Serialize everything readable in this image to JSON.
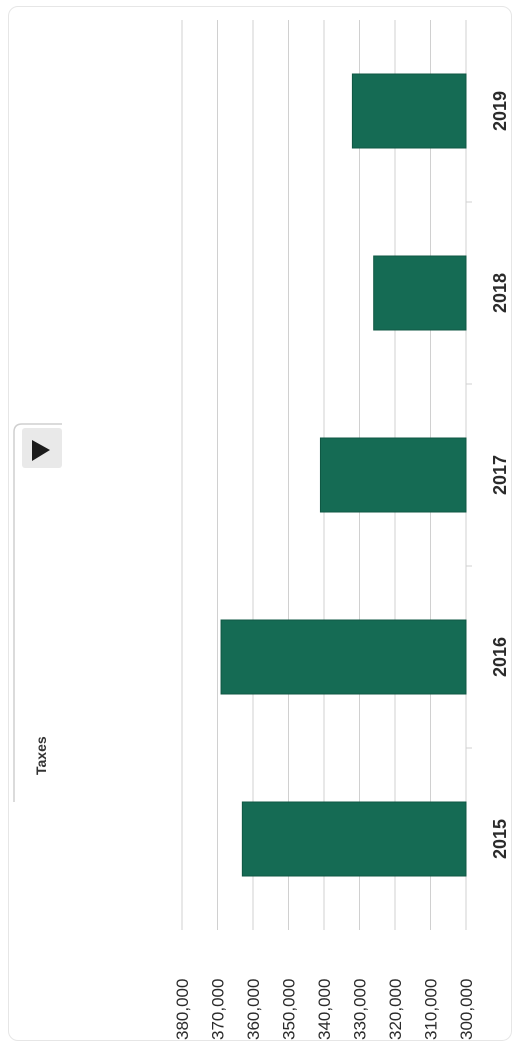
{
  "dropdown": {
    "selected": "Taxes",
    "icon": "triangle-right-icon"
  },
  "colors": {
    "bar": "#156B54",
    "bar_stroke": "#0f5743",
    "grid": "#d0d0d0",
    "text": "#2b2b2b"
  },
  "chart_data": {
    "type": "bar",
    "orientation": "rotated-90-clockwise",
    "title": "",
    "xlabel": "",
    "ylabel": "",
    "categories": [
      "2015",
      "2016",
      "2017",
      "2018",
      "2019"
    ],
    "series": [
      {
        "values": [
          363000,
          369000,
          341000,
          326000,
          332000
        ]
      }
    ],
    "ylim": [
      300000,
      380000
    ],
    "y_ticks": [
      "300,000",
      "310,000",
      "320,000",
      "330,000",
      "340,000",
      "350,000",
      "360,000",
      "370,000",
      "380,000"
    ],
    "grid": true,
    "legend": "none"
  }
}
